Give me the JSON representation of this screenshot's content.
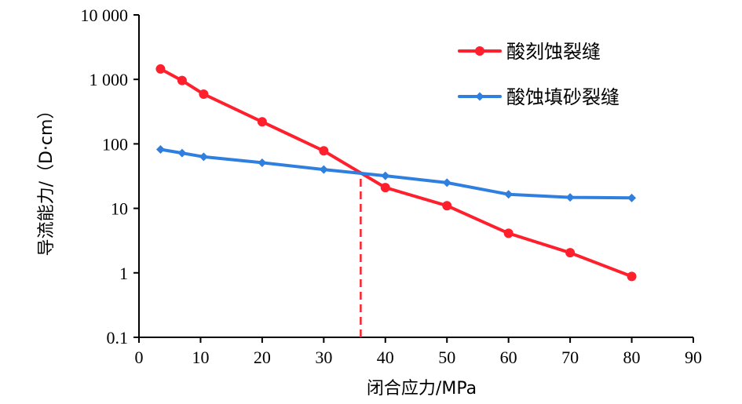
{
  "chart_data": {
    "type": "line",
    "title": "",
    "xlabel": "闭合应力/MPa",
    "ylabel": "导流能力/（D·cm）",
    "xlim": [
      0,
      90
    ],
    "ylim": [
      0.1,
      10000
    ],
    "yscale": "log",
    "xticks": [
      0,
      10,
      20,
      30,
      40,
      50,
      60,
      70,
      80,
      90
    ],
    "yticks": [
      {
        "value": 0.1,
        "label": "0.1"
      },
      {
        "value": 1,
        "label": "1"
      },
      {
        "value": 10,
        "label": "10"
      },
      {
        "value": 100,
        "label": "100"
      },
      {
        "value": 1000,
        "label": "1 000"
      },
      {
        "value": 10000,
        "label": "10 000"
      }
    ],
    "legend_position": "top-right",
    "series": [
      {
        "name": "酸刻蚀裂缝",
        "color": "#ff1f2d",
        "marker": "circle",
        "x": [
          3.5,
          7,
          10.5,
          20,
          30,
          40,
          50,
          60,
          70,
          80
        ],
        "y": [
          1450,
          960,
          590,
          220,
          78,
          21,
          11,
          4.1,
          2.05,
          0.88
        ]
      },
      {
        "name": "酸蚀填砂裂缝",
        "color": "#2f7fe0",
        "marker": "diamond",
        "x": [
          3.5,
          7,
          10.5,
          20,
          30,
          40,
          50,
          60,
          70,
          80
        ],
        "y": [
          82,
          72,
          63,
          51,
          40,
          32,
          25,
          16.5,
          14.8,
          14.5
        ]
      }
    ],
    "annotations": [
      {
        "type": "vertical-dashed-line",
        "x": 36,
        "y_from": 0.1,
        "y_to": 34,
        "color": "#ff1f2d"
      }
    ]
  }
}
